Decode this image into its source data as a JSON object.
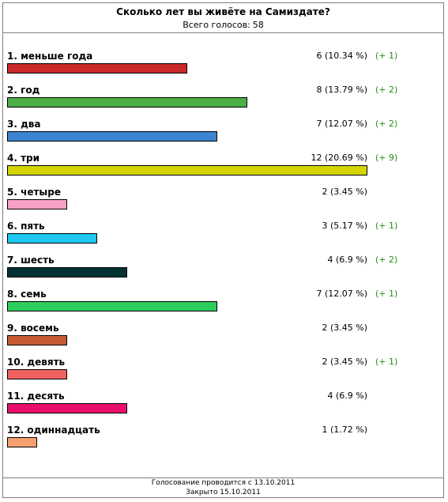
{
  "poll": {
    "title": "Сколько лет вы живёте на Самиздате?",
    "total_label": "Всего голосов:",
    "total_value": "58",
    "footer_line1": "Голосование проводится с 13.10.2011",
    "footer_line2": "Закрыто 15.10.2011"
  },
  "chart_data": {
    "type": "bar",
    "orientation": "horizontal",
    "categories": [
      "1. меньше года",
      "2. год",
      "3. два",
      "4. три",
      "5. четыре",
      "6. пять",
      "7. шесть",
      "8. семь",
      "9. восемь",
      "10. девять",
      "11. десять",
      "12. одиннадцать"
    ],
    "values": [
      6,
      8,
      7,
      12,
      2,
      3,
      4,
      7,
      2,
      2,
      4,
      1
    ],
    "value_labels": [
      "6 (10.34 %)",
      "8 (13.79 %)",
      "7 (12.07 %)",
      "12 (20.69 %)",
      "2 (3.45 %)",
      "3 (5.17 %)",
      "4 (6.9 %)",
      "7 (12.07 %)",
      "2 (3.45 %)",
      "2 (3.45 %)",
      "4 (6.9 %)",
      "1 (1.72 %)"
    ],
    "deltas": [
      "(+ 1)",
      "(+ 2)",
      "(+ 2)",
      "(+ 9)",
      "",
      "(+ 1)",
      "(+ 2)",
      "(+ 1)",
      "",
      "(+ 1)",
      "",
      ""
    ],
    "colors": [
      "#cc2a2a",
      "#4caf45",
      "#3a85d0",
      "#d4d400",
      "#f7a0c8",
      "#1ec8f0",
      "#023232",
      "#2ecc5c",
      "#c85a32",
      "#f06060",
      "#e8106a",
      "#f5a070"
    ],
    "xlim": [
      0,
      12
    ]
  }
}
